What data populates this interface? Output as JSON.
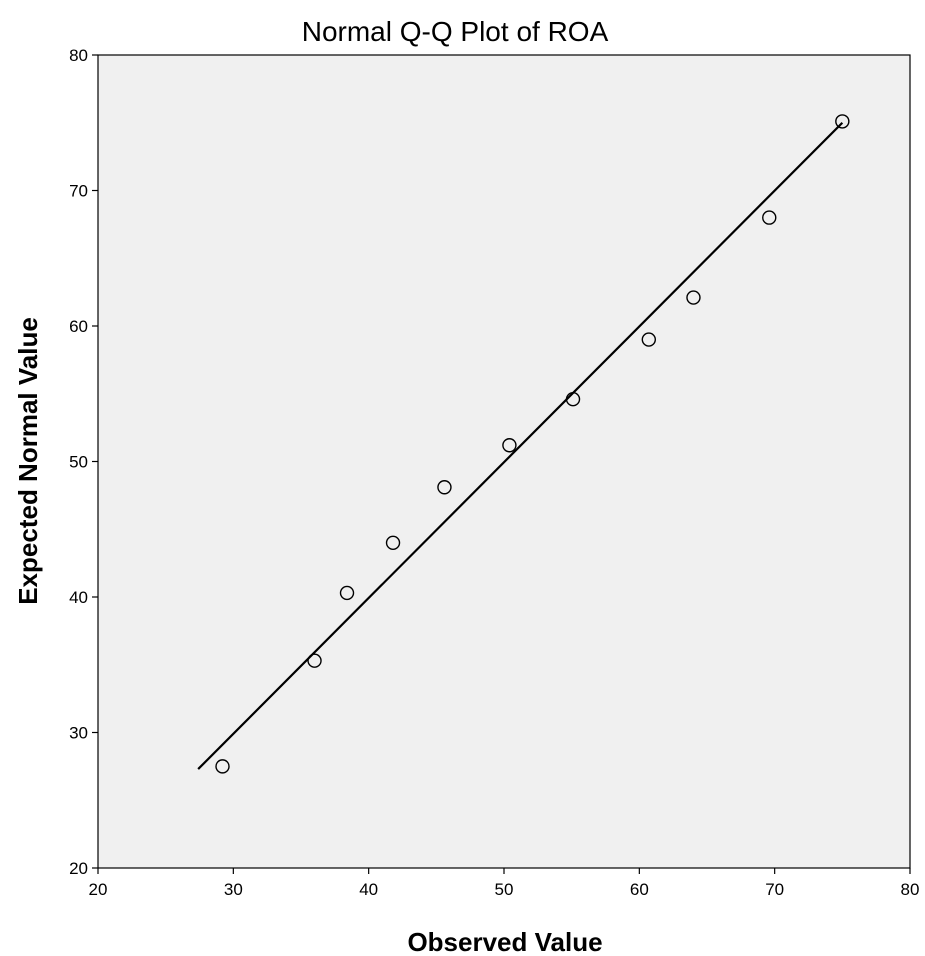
{
  "colors": {
    "plot_background": "#f0f0f0",
    "frame": "#000000",
    "points": "#000000",
    "reference_line": "#000000"
  },
  "chart_data": {
    "type": "scatter",
    "title": "Normal Q-Q Plot of ROA",
    "xlabel": "Observed Value",
    "ylabel": "Expected Normal Value",
    "xlim": [
      20,
      80
    ],
    "ylim": [
      20,
      80
    ],
    "xticks": [
      20,
      30,
      40,
      50,
      60,
      70,
      80
    ],
    "yticks": [
      20,
      30,
      40,
      50,
      60,
      70,
      80
    ],
    "xtick_labels": [
      "20",
      "30",
      "40",
      "50",
      "60",
      "70",
      "80"
    ],
    "ytick_labels": [
      "20",
      "30",
      "40",
      "50",
      "60",
      "70",
      "80"
    ],
    "grid": false,
    "marker": "open-circle",
    "points": [
      {
        "x": 29.2,
        "y": 27.5
      },
      {
        "x": 36.0,
        "y": 35.3
      },
      {
        "x": 38.4,
        "y": 40.3
      },
      {
        "x": 41.8,
        "y": 44.0
      },
      {
        "x": 45.6,
        "y": 48.1
      },
      {
        "x": 50.4,
        "y": 51.2
      },
      {
        "x": 55.1,
        "y": 54.6
      },
      {
        "x": 60.7,
        "y": 59.0
      },
      {
        "x": 64.0,
        "y": 62.1
      },
      {
        "x": 69.6,
        "y": 68.0
      },
      {
        "x": 75.0,
        "y": 75.1
      }
    ],
    "reference_line": {
      "from": {
        "x": 27.4,
        "y": 27.3
      },
      "to": {
        "x": 75.0,
        "y": 75.0
      }
    }
  }
}
